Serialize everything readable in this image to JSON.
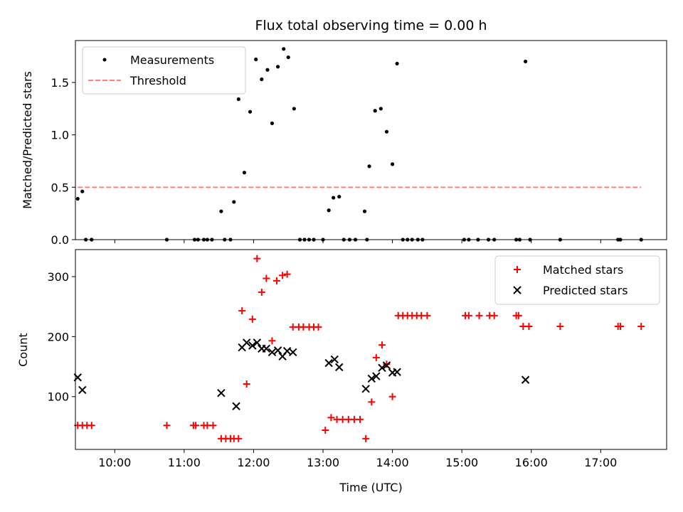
{
  "figure": {
    "title": "Flux total observing time = 0.00 h",
    "x_label": "Time (UTC)"
  },
  "chart_data": [
    {
      "type": "scatter",
      "ylabel": "Matched/Predicted stars",
      "xlim": [
        "09:26",
        "17:57"
      ],
      "ylim": [
        0,
        1.9
      ],
      "y_ticks": [
        0,
        0.5,
        1.0,
        1.5
      ],
      "y_tick_labels": [
        "0.0",
        "0.5",
        "1.0",
        "1.5"
      ],
      "x_ticks": [
        "10:00",
        "11:00",
        "12:00",
        "13:00",
        "14:00",
        "15:00",
        "16:00",
        "17:00"
      ],
      "show_x_tick_labels": false,
      "grid": false,
      "legend": {
        "position": "upper left",
        "entries": [
          "Measurements",
          "Threshold"
        ]
      },
      "series": [
        {
          "name": "Measurements",
          "marker": "dot",
          "color": "#000000",
          "points": [
            [
              "09:28",
              0.39
            ],
            [
              "09:32",
              0.46
            ],
            [
              "09:35",
              0.0
            ],
            [
              "09:40",
              0.0
            ],
            [
              "10:45",
              0.0
            ],
            [
              "11:09",
              0.0
            ],
            [
              "11:12",
              0.0
            ],
            [
              "11:17",
              0.0
            ],
            [
              "11:20",
              0.0
            ],
            [
              "11:24",
              0.0
            ],
            [
              "11:32",
              0.27
            ],
            [
              "11:35",
              0.0
            ],
            [
              "11:40",
              0.0
            ],
            [
              "11:43",
              0.36
            ],
            [
              "11:47",
              1.34
            ],
            [
              "11:52",
              0.64
            ],
            [
              "11:57",
              1.22
            ],
            [
              "12:02",
              1.72
            ],
            [
              "12:07",
              1.53
            ],
            [
              "12:12",
              1.62
            ],
            [
              "12:16",
              1.11
            ],
            [
              "12:21",
              1.65
            ],
            [
              "12:26",
              1.82
            ],
            [
              "12:30",
              1.74
            ],
            [
              "12:35",
              1.25
            ],
            [
              "12:40",
              0.0
            ],
            [
              "12:44",
              0.0
            ],
            [
              "12:48",
              0.0
            ],
            [
              "12:52",
              0.0
            ],
            [
              "13:00",
              0.0
            ],
            [
              "13:05",
              0.28
            ],
            [
              "13:09",
              0.4
            ],
            [
              "13:14",
              0.41
            ],
            [
              "13:18",
              0.0
            ],
            [
              "13:23",
              0.0
            ],
            [
              "13:28",
              0.0
            ],
            [
              "13:36",
              0.27
            ],
            [
              "13:38",
              0.0
            ],
            [
              "13:40",
              0.7
            ],
            [
              "13:45",
              1.23
            ],
            [
              "13:50",
              1.25
            ],
            [
              "13:55",
              1.03
            ],
            [
              "14:00",
              0.72
            ],
            [
              "14:04",
              1.68
            ],
            [
              "14:09",
              0.0
            ],
            [
              "14:13",
              0.0
            ],
            [
              "14:17",
              0.0
            ],
            [
              "14:22",
              0.0
            ],
            [
              "14:26",
              0.0
            ],
            [
              "15:02",
              0.0
            ],
            [
              "15:06",
              0.0
            ],
            [
              "15:14",
              0.0
            ],
            [
              "15:23",
              0.0
            ],
            [
              "15:28",
              0.0
            ],
            [
              "15:47",
              0.0
            ],
            [
              "15:50",
              0.0
            ],
            [
              "15:55",
              1.7
            ],
            [
              "15:59",
              0.0
            ],
            [
              "16:25",
              0.0
            ],
            [
              "17:15",
              0.0
            ],
            [
              "17:17",
              0.0
            ],
            [
              "17:35",
              0.0
            ]
          ]
        },
        {
          "name": "Threshold",
          "marker": "dashed-line",
          "color": "#ff7f7f",
          "points": [
            [
              "09:28",
              0.5
            ],
            [
              "17:35",
              0.5
            ]
          ]
        }
      ]
    },
    {
      "type": "scatter",
      "xlabel": "Time (UTC)",
      "ylabel": "Count",
      "xlim": [
        "09:26",
        "17:57"
      ],
      "ylim": [
        12,
        345
      ],
      "y_ticks": [
        100,
        200,
        300
      ],
      "y_tick_labels": [
        "100",
        "200",
        "300"
      ],
      "x_ticks": [
        "10:00",
        "11:00",
        "12:00",
        "13:00",
        "14:00",
        "15:00",
        "16:00",
        "17:00"
      ],
      "x_tick_labels": [
        "10:00",
        "11:00",
        "12:00",
        "13:00",
        "14:00",
        "15:00",
        "16:00",
        "17:00"
      ],
      "grid": false,
      "legend": {
        "position": "upper right",
        "entries": [
          "Matched stars",
          "Predicted stars"
        ]
      },
      "series": [
        {
          "name": "Matched stars",
          "marker": "plus",
          "color": "#ff0000",
          "points": [
            [
              "09:28",
              52
            ],
            [
              "09:32",
              52
            ],
            [
              "09:36",
              52
            ],
            [
              "09:40",
              52
            ],
            [
              "10:45",
              52
            ],
            [
              "11:08",
              52
            ],
            [
              "11:10",
              52
            ],
            [
              "11:17",
              52
            ],
            [
              "11:20",
              52
            ],
            [
              "11:25",
              52
            ],
            [
              "11:32",
              30
            ],
            [
              "11:36",
              30
            ],
            [
              "11:40",
              30
            ],
            [
              "11:43",
              30
            ],
            [
              "11:47",
              30
            ],
            [
              "11:50",
              243
            ],
            [
              "11:54",
              121
            ],
            [
              "11:59",
              229
            ],
            [
              "12:03",
              330
            ],
            [
              "12:07",
              274
            ],
            [
              "12:11",
              297
            ],
            [
              "12:16",
              193
            ],
            [
              "12:20",
              293
            ],
            [
              "12:25",
              302
            ],
            [
              "12:29",
              304
            ],
            [
              "12:34",
              216
            ],
            [
              "12:39",
              216
            ],
            [
              "12:43",
              216
            ],
            [
              "12:48",
              216
            ],
            [
              "12:52",
              216
            ],
            [
              "12:56",
              216
            ],
            [
              "13:02",
              44
            ],
            [
              "13:07",
              65
            ],
            [
              "13:12",
              62
            ],
            [
              "13:17",
              62
            ],
            [
              "13:22",
              62
            ],
            [
              "13:27",
              62
            ],
            [
              "13:32",
              62
            ],
            [
              "13:37",
              30
            ],
            [
              "13:42",
              91
            ],
            [
              "13:46",
              165
            ],
            [
              "13:51",
              186
            ],
            [
              "13:55",
              154
            ],
            [
              "14:00",
              100
            ],
            [
              "14:05",
              235
            ],
            [
              "14:09",
              235
            ],
            [
              "14:13",
              235
            ],
            [
              "14:17",
              235
            ],
            [
              "14:21",
              235
            ],
            [
              "14:25",
              235
            ],
            [
              "14:30",
              235
            ],
            [
              "15:03",
              235
            ],
            [
              "15:06",
              235
            ],
            [
              "15:15",
              235
            ],
            [
              "15:24",
              235
            ],
            [
              "15:28",
              235
            ],
            [
              "15:47",
              235
            ],
            [
              "15:49",
              235
            ],
            [
              "15:53",
              217
            ],
            [
              "15:58",
              217
            ],
            [
              "16:25",
              217
            ],
            [
              "17:15",
              217
            ],
            [
              "17:17",
              217
            ],
            [
              "17:35",
              217
            ]
          ]
        },
        {
          "name": "Predicted stars",
          "marker": "x",
          "color": "#000000",
          "points": [
            [
              "09:28",
              132
            ],
            [
              "09:32",
              111
            ],
            [
              "11:32",
              106
            ],
            [
              "11:45",
              84
            ],
            [
              "11:50",
              182
            ],
            [
              "11:54",
              190
            ],
            [
              "11:59",
              185
            ],
            [
              "12:03",
              190
            ],
            [
              "12:07",
              180
            ],
            [
              "12:11",
              180
            ],
            [
              "12:16",
              174
            ],
            [
              "12:21",
              177
            ],
            [
              "12:25",
              167
            ],
            [
              "12:29",
              176
            ],
            [
              "12:34",
              174
            ],
            [
              "13:05",
              156
            ],
            [
              "13:10",
              162
            ],
            [
              "13:14",
              149
            ],
            [
              "13:37",
              113
            ],
            [
              "13:42",
              130
            ],
            [
              "13:46",
              134
            ],
            [
              "13:51",
              148
            ],
            [
              "13:55",
              152
            ],
            [
              "14:00",
              140
            ],
            [
              "14:04",
              141
            ],
            [
              "15:55",
              128
            ]
          ]
        }
      ]
    }
  ]
}
